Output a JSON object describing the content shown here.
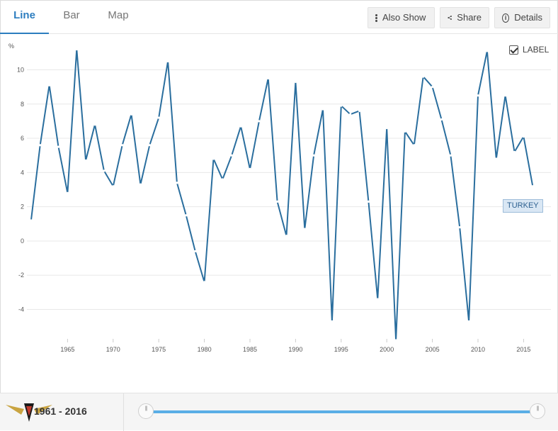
{
  "tabs": [
    {
      "label": "Line",
      "active": true
    },
    {
      "label": "Bar",
      "active": false
    },
    {
      "label": "Map",
      "active": false
    }
  ],
  "toolbar": {
    "also_show": "Also Show",
    "share": "Share",
    "details": "Details"
  },
  "label_toggle": {
    "label": "LABEL",
    "checked": true
  },
  "range": {
    "text": "1961 - 2016",
    "start": 1961,
    "end": 2016
  },
  "colors": {
    "accent": "#2c7dbf",
    "series": "#2a6e9e",
    "slider": "#5aaee6"
  },
  "chart_data": {
    "type": "line",
    "ylabel": "%",
    "xlabel": "",
    "ylim": [
      -5.8,
      11.8
    ],
    "xlim": [
      1960.7,
      2016.6
    ],
    "yticks": [
      -4,
      -2,
      0,
      2,
      4,
      6,
      8,
      10
    ],
    "ytick_labels": [
      "-4",
      "-2",
      "0",
      "2",
      "4",
      "6",
      "8",
      "10"
    ],
    "xticks": [
      1965,
      1970,
      1975,
      1980,
      1985,
      1990,
      1995,
      2000,
      2005,
      2010,
      2015
    ],
    "xtick_labels": [
      "1965",
      "1970",
      "1975",
      "1980",
      "1985",
      "1990",
      "1995",
      "2000",
      "2005",
      "2010",
      "2015"
    ],
    "grid": "horizontal",
    "series": [
      {
        "name": "TURKEY",
        "x": [
          1961,
          1962,
          1963,
          1964,
          1965,
          1966,
          1967,
          1968,
          1969,
          1970,
          1971,
          1972,
          1973,
          1974,
          1975,
          1976,
          1977,
          1978,
          1979,
          1980,
          1981,
          1982,
          1983,
          1984,
          1985,
          1986,
          1987,
          1988,
          1989,
          1990,
          1991,
          1992,
          1993,
          1994,
          1995,
          1996,
          1997,
          1998,
          1999,
          2000,
          2001,
          2002,
          2003,
          2004,
          2005,
          2006,
          2007,
          2008,
          2009,
          2010,
          2011,
          2012,
          2013,
          2014,
          2015,
          2016
        ],
        "values": [
          1.2,
          5.6,
          9.1,
          5.5,
          2.8,
          11.2,
          4.7,
          6.8,
          4.1,
          3.2,
          5.6,
          7.4,
          3.3,
          5.6,
          7.2,
          10.5,
          3.4,
          1.5,
          -0.6,
          -2.4,
          4.8,
          3.6,
          5.0,
          6.7,
          4.2,
          7.0,
          9.5,
          2.3,
          0.3,
          9.3,
          0.7,
          5.0,
          7.7,
          -4.7,
          7.9,
          7.4,
          7.6,
          2.3,
          -3.4,
          6.6,
          -5.8,
          6.4,
          5.6,
          9.6,
          9.0,
          7.1,
          5.0,
          0.8,
          -4.7,
          8.5,
          11.1,
          4.8,
          8.5,
          5.2,
          6.1,
          3.2
        ]
      }
    ]
  }
}
